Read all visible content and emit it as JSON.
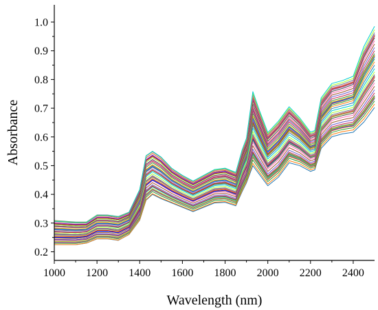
{
  "chart_data": {
    "type": "line",
    "title": "",
    "xlabel": "Wavelength (nm)",
    "ylabel": "Absorbance",
    "xlim": [
      1000,
      2500
    ],
    "ylim": [
      0.17,
      1.06
    ],
    "xticks": [
      1000,
      1200,
      1400,
      1600,
      1800,
      2000,
      2200,
      2400
    ],
    "yticks": [
      0.2,
      0.3,
      0.4,
      0.5,
      0.6,
      0.7,
      0.8,
      0.9,
      1.0
    ],
    "ytick_labels": [
      "0.2",
      "0.3",
      "0.4",
      "0.5",
      "0.6",
      "0.7",
      "0.8",
      "0.9",
      "1.0"
    ],
    "grid": false,
    "legend": "none",
    "n_series": 60,
    "x": [
      1000,
      1100,
      1150,
      1200,
      1250,
      1300,
      1350,
      1400,
      1430,
      1460,
      1500,
      1550,
      1600,
      1650,
      1700,
      1750,
      1800,
      1850,
      1880,
      1900,
      1930,
      1960,
      2000,
      2050,
      2100,
      2150,
      2200,
      2220,
      2250,
      2300,
      2350,
      2400,
      2450,
      2500
    ],
    "series_min": [
      0.225,
      0.225,
      0.23,
      0.245,
      0.245,
      0.24,
      0.26,
      0.31,
      0.38,
      0.4,
      0.385,
      0.37,
      0.355,
      0.34,
      0.355,
      0.37,
      0.372,
      0.36,
      0.41,
      0.44,
      0.5,
      0.47,
      0.43,
      0.46,
      0.51,
      0.5,
      0.48,
      0.485,
      0.56,
      0.6,
      0.61,
      0.615,
      0.65,
      0.7
    ],
    "series_max": [
      0.31,
      0.305,
      0.305,
      0.33,
      0.33,
      0.325,
      0.34,
      0.42,
      0.54,
      0.555,
      0.535,
      0.495,
      0.47,
      0.45,
      0.47,
      0.49,
      0.495,
      0.48,
      0.56,
      0.6,
      0.765,
      0.7,
      0.62,
      0.66,
      0.71,
      0.67,
      0.62,
      0.625,
      0.74,
      0.79,
      0.8,
      0.815,
      0.92,
      0.99
    ],
    "palette": [
      "#1f77b4",
      "#ff7f0e",
      "#2ca02c",
      "#d62728",
      "#9467bd",
      "#8c564b",
      "#e377c2",
      "#7f7f7f",
      "#bcbd22",
      "#17becf",
      "#1a55ff",
      "#e6a800",
      "#3a9a3a",
      "#c7254e",
      "#6a5acd",
      "#a0522d",
      "#ff69b4",
      "#4d4d4d",
      "#9acd32",
      "#20b2aa",
      "#0000ff",
      "#ff4500",
      "#008000",
      "#b22222",
      "#8a2be2",
      "#d2691e",
      "#db7093",
      "#708090",
      "#adff2f",
      "#00ced1"
    ]
  }
}
